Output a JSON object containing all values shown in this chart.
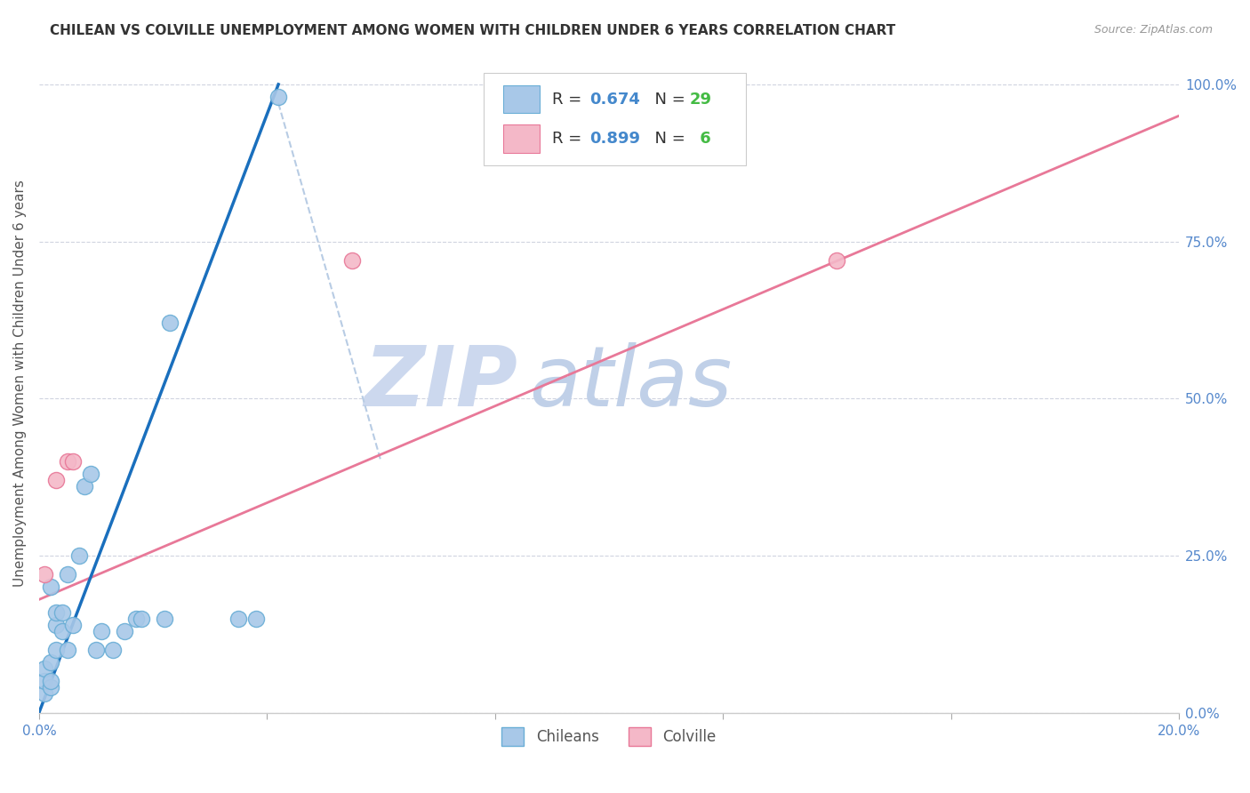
{
  "title": "CHILEAN VS COLVILLE UNEMPLOYMENT AMONG WOMEN WITH CHILDREN UNDER 6 YEARS CORRELATION CHART",
  "source": "Source: ZipAtlas.com",
  "ylabel": "Unemployment Among Women with Children Under 6 years",
  "xlim": [
    0.0,
    0.2
  ],
  "ylim": [
    0.0,
    1.05
  ],
  "x_ticks": [
    0.0,
    0.04,
    0.08,
    0.12,
    0.16,
    0.2
  ],
  "x_tick_labels": [
    "0.0%",
    "",
    "",
    "",
    "",
    "20.0%"
  ],
  "y_ticks_right": [
    0.0,
    0.25,
    0.5,
    0.75,
    1.0
  ],
  "y_tick_labels_right": [
    "0.0%",
    "25.0%",
    "50.0%",
    "75.0%",
    "100.0%"
  ],
  "chilean_R": 0.674,
  "chilean_N": 29,
  "colville_R": 0.899,
  "colville_N": 6,
  "chilean_color": "#a8c8e8",
  "chilean_edge_color": "#6aaed6",
  "colville_color": "#f4b8c8",
  "colville_edge_color": "#e87898",
  "chilean_line_color": "#1a6fbd",
  "colville_line_color": "#e87898",
  "diagonal_color": "#b8cce4",
  "background_color": "#ffffff",
  "grid_color": "#d0d4e0",
  "title_color": "#333333",
  "source_color": "#999999",
  "legend_R_color": "#4488cc",
  "legend_N_color": "#44bb44",
  "chilean_points_x": [
    0.001,
    0.001,
    0.001,
    0.002,
    0.002,
    0.002,
    0.002,
    0.003,
    0.003,
    0.003,
    0.004,
    0.004,
    0.005,
    0.005,
    0.006,
    0.007,
    0.008,
    0.009,
    0.01,
    0.011,
    0.013,
    0.015,
    0.017,
    0.018,
    0.022,
    0.023,
    0.035,
    0.038,
    0.042
  ],
  "chilean_points_y": [
    0.03,
    0.05,
    0.07,
    0.04,
    0.05,
    0.08,
    0.2,
    0.1,
    0.14,
    0.16,
    0.13,
    0.16,
    0.1,
    0.22,
    0.14,
    0.25,
    0.36,
    0.38,
    0.1,
    0.13,
    0.1,
    0.13,
    0.15,
    0.15,
    0.15,
    0.62,
    0.15,
    0.15,
    0.98
  ],
  "colville_points_x": [
    0.001,
    0.003,
    0.005,
    0.006,
    0.055,
    0.14
  ],
  "colville_points_y": [
    0.22,
    0.37,
    0.4,
    0.4,
    0.72,
    0.72
  ],
  "chilean_line_x": [
    0.0,
    0.042
  ],
  "chilean_line_y": [
    0.0,
    1.0
  ],
  "colville_line_x": [
    0.0,
    0.2
  ],
  "colville_line_y": [
    0.18,
    0.95
  ],
  "diagonal_line_x": [
    0.042,
    0.06
  ],
  "diagonal_line_y": [
    0.97,
    0.4
  ],
  "watermark_zip": "ZIP",
  "watermark_atlas": "atlas",
  "watermark_color_zip": "#ccd8ee",
  "watermark_color_atlas": "#c0d0e8",
  "marker_size": 170,
  "legend_entries": [
    "Chileans",
    "Colville"
  ]
}
